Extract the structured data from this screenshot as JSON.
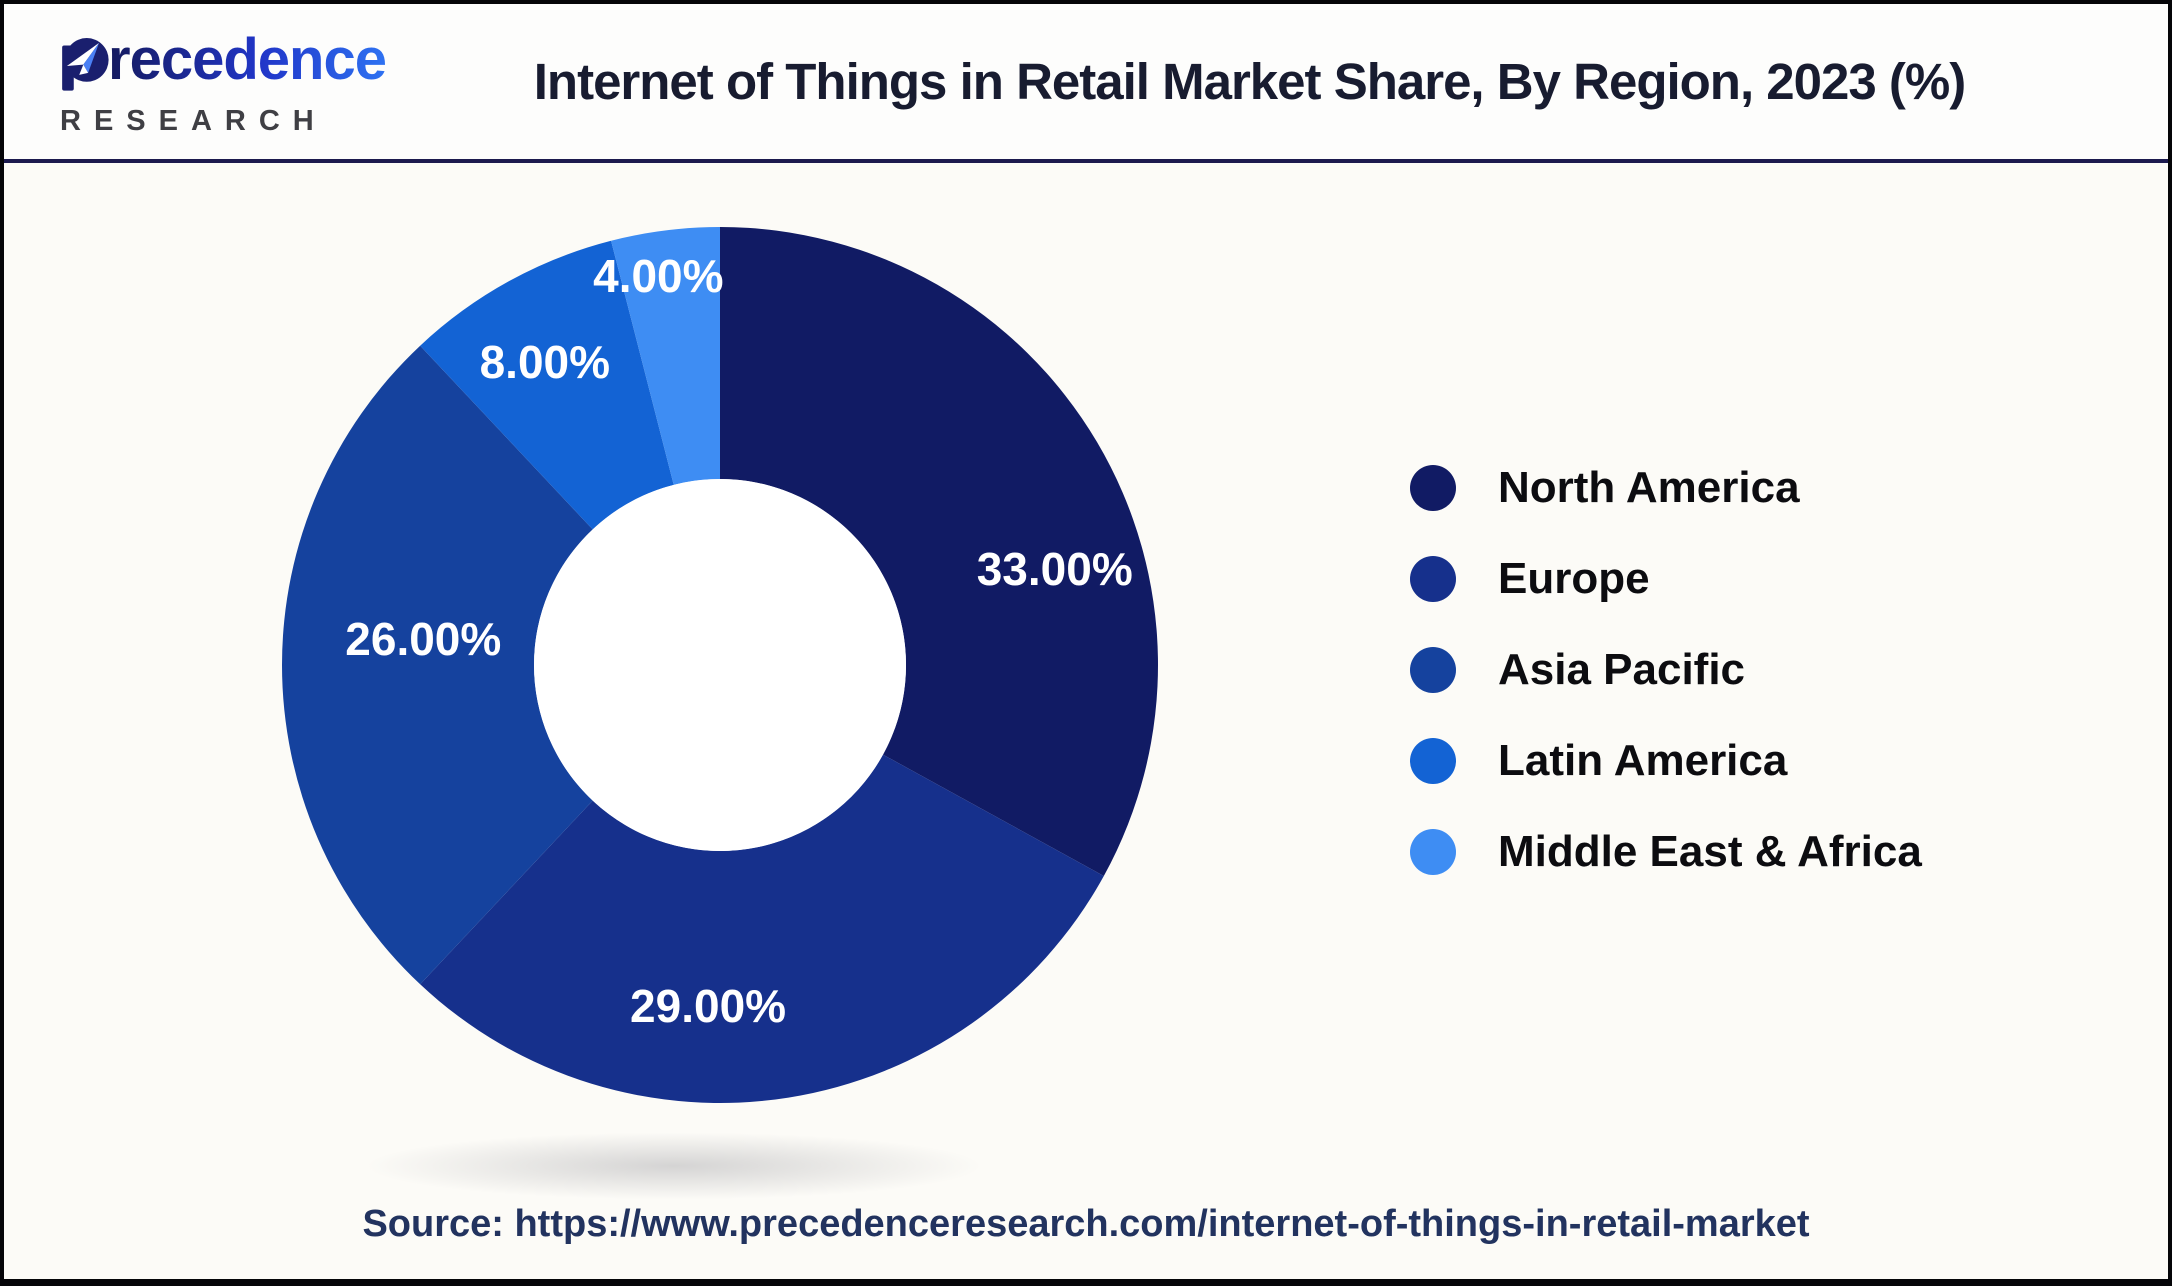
{
  "header": {
    "brand": {
      "name": "Precedence",
      "name_rest": "recedence",
      "subtitle": "RESEARCH"
    },
    "title": "Internet of Things in Retail Market Share, By Region, 2023 (%)"
  },
  "chart_data": {
    "type": "pie",
    "subtype": "donut",
    "title": "Internet of Things in Retail Market Share, By Region, 2023 (%)",
    "year": "2023",
    "unit": "%",
    "labels": [
      "North America",
      "Europe",
      "Asia Pacific",
      "Latin America",
      "Middle East & Africa"
    ],
    "values": [
      33,
      29,
      26,
      8,
      4
    ],
    "value_labels": [
      "33.00%",
      "29.00%",
      "26.00%",
      "8.00%",
      "4.00%"
    ],
    "colors": [
      "#111B64",
      "#16308C",
      "#15429E",
      "#1363D4",
      "#3E8DF3"
    ],
    "start_angle_deg": 0,
    "direction": "clockwise",
    "inner_radius_ratio": 0.425,
    "legend_position": "right",
    "label_color": "#ffffff"
  },
  "source": {
    "text": "Source: https://www.precedenceresearch.com/internet-of-things-in-retail-market"
  }
}
